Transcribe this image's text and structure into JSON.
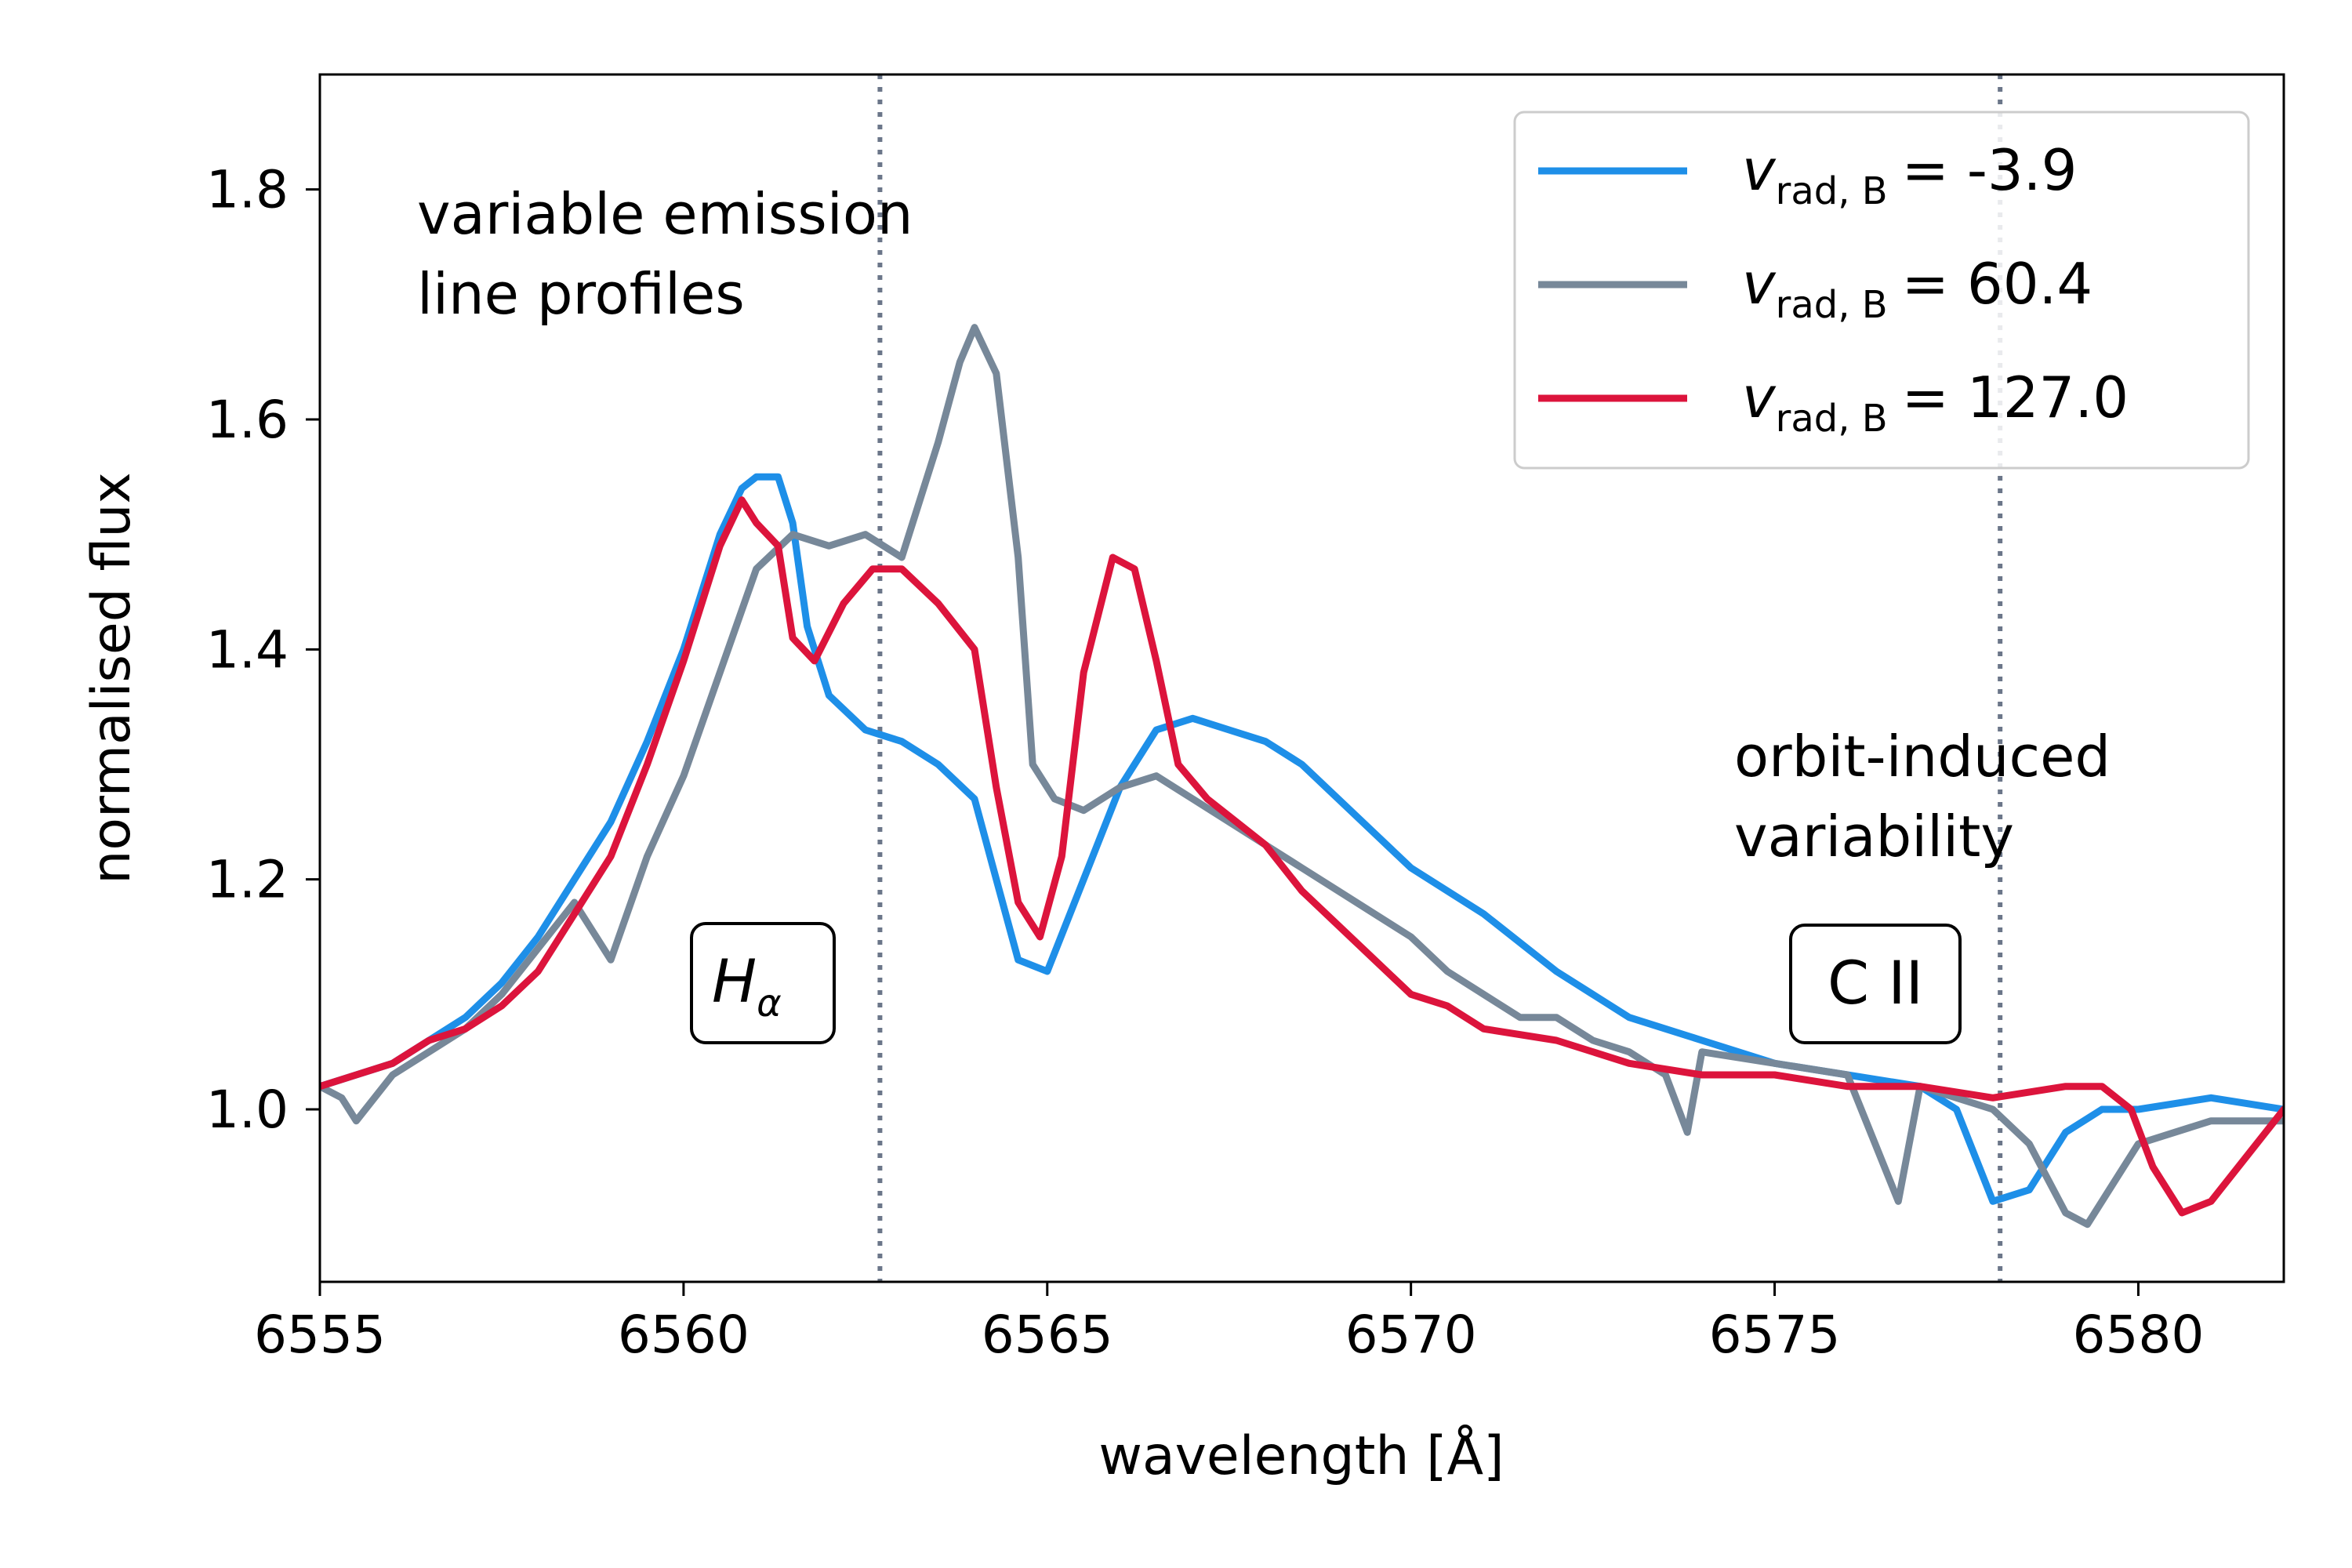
{
  "chart_data": {
    "type": "line",
    "xlabel": "wavelength [Å]",
    "ylabel": "normalised flux",
    "xlim": [
      6555,
      6582
    ],
    "ylim": [
      0.85,
      1.9
    ],
    "x_ticks": [
      "6555",
      "6560",
      "6565",
      "6570",
      "6575",
      "6580"
    ],
    "y_ticks": [
      "1.0",
      "1.2",
      "1.4",
      "1.6",
      "1.8"
    ],
    "grid": false,
    "legend_position": "top-right",
    "legend_var": "v",
    "legend_sub": "rad, B",
    "legend_eq": "=",
    "reference_lines": [
      {
        "x": 6562.7,
        "style": "dotted",
        "color": "#6b7689"
      },
      {
        "x": 6578.1,
        "style": "dotted",
        "color": "#6b7689"
      }
    ],
    "annotations": {
      "emission_line1": "variable emission",
      "emission_line2": "line profiles",
      "orbit_line1": "orbit-induced",
      "orbit_line2": "variability"
    },
    "line_labels": {
      "halpha_main": "H",
      "halpha_sub": "α",
      "cii": "C II"
    },
    "series": [
      {
        "name": "-3.9",
        "color": "#1e8fe8",
        "x": [
          6555.0,
          6555.5,
          6556.0,
          6556.5,
          6557.0,
          6557.5,
          6558.0,
          6558.5,
          6559.0,
          6559.5,
          6560.0,
          6560.5,
          6560.8,
          6561.0,
          6561.3,
          6561.5,
          6561.7,
          6562.0,
          6562.5,
          6563.0,
          6563.5,
          6564.0,
          6564.3,
          6564.6,
          6565.0,
          6565.5,
          6566.0,
          6566.5,
          6567.0,
          6567.5,
          6568.0,
          6568.5,
          6569.0,
          6569.5,
          6570.0,
          6571.0,
          6572.0,
          6573.0,
          6574.0,
          6575.0,
          6576.0,
          6577.0,
          6577.5,
          6578.0,
          6578.5,
          6579.0,
          6579.5,
          6580.0,
          6581.0,
          6582.0
        ],
        "y": [
          1.02,
          1.03,
          1.04,
          1.06,
          1.08,
          1.11,
          1.15,
          1.2,
          1.25,
          1.32,
          1.4,
          1.5,
          1.54,
          1.55,
          1.55,
          1.51,
          1.42,
          1.36,
          1.33,
          1.32,
          1.3,
          1.27,
          1.2,
          1.13,
          1.12,
          1.2,
          1.28,
          1.33,
          1.34,
          1.33,
          1.32,
          1.3,
          1.27,
          1.24,
          1.21,
          1.17,
          1.12,
          1.08,
          1.06,
          1.04,
          1.03,
          1.02,
          1.0,
          0.92,
          0.93,
          0.98,
          1.0,
          1.0,
          1.01,
          1.0
        ]
      },
      {
        "name": "60.4",
        "color": "#778899",
        "x": [
          6555.0,
          6555.3,
          6555.5,
          6556.0,
          6556.5,
          6557.0,
          6557.5,
          6558.0,
          6558.5,
          6559.0,
          6559.5,
          6560.0,
          6560.5,
          6561.0,
          6561.5,
          6562.0,
          6562.5,
          6563.0,
          6563.5,
          6563.8,
          6564.0,
          6564.3,
          6564.6,
          6564.8,
          6565.1,
          6565.5,
          6566.0,
          6566.5,
          6567.0,
          6567.5,
          6568.0,
          6568.5,
          6569.0,
          6569.5,
          6570.0,
          6570.5,
          6571.0,
          6571.5,
          6572.0,
          6572.5,
          6573.0,
          6573.5,
          6573.8,
          6574.0,
          6575.0,
          6576.0,
          6576.7,
          6577.0,
          6577.5,
          6578.0,
          6578.5,
          6579.0,
          6579.3,
          6579.6,
          6580.0,
          6580.5,
          6581.0,
          6582.0
        ],
        "y": [
          1.02,
          1.01,
          0.99,
          1.03,
          1.05,
          1.07,
          1.1,
          1.14,
          1.18,
          1.13,
          1.22,
          1.29,
          1.38,
          1.47,
          1.5,
          1.49,
          1.5,
          1.48,
          1.58,
          1.65,
          1.68,
          1.64,
          1.48,
          1.3,
          1.27,
          1.26,
          1.28,
          1.29,
          1.27,
          1.25,
          1.23,
          1.21,
          1.19,
          1.17,
          1.15,
          1.12,
          1.1,
          1.08,
          1.08,
          1.06,
          1.05,
          1.03,
          0.98,
          1.05,
          1.04,
          1.03,
          0.92,
          1.02,
          1.01,
          1.0,
          0.97,
          0.91,
          0.9,
          0.93,
          0.97,
          0.98,
          0.99,
          0.99
        ]
      },
      {
        "name": "127.0",
        "color": "#dc143c",
        "x": [
          6555.0,
          6555.5,
          6556.0,
          6556.5,
          6557.0,
          6557.5,
          6558.0,
          6558.5,
          6559.0,
          6559.5,
          6560.0,
          6560.5,
          6560.8,
          6561.0,
          6561.3,
          6561.5,
          6561.8,
          6562.2,
          6562.6,
          6563.0,
          6563.5,
          6564.0,
          6564.3,
          6564.6,
          6564.9,
          6565.2,
          6565.5,
          6565.9,
          6566.2,
          6566.5,
          6566.8,
          6567.2,
          6567.6,
          6568.0,
          6568.5,
          6569.0,
          6569.5,
          6570.0,
          6570.5,
          6571.0,
          6572.0,
          6573.0,
          6574.0,
          6575.0,
          6576.0,
          6577.0,
          6578.0,
          6579.0,
          6579.5,
          6579.9,
          6580.2,
          6580.6,
          6581.0,
          6581.5,
          6582.0
        ],
        "y": [
          1.02,
          1.03,
          1.04,
          1.06,
          1.07,
          1.09,
          1.12,
          1.17,
          1.22,
          1.3,
          1.39,
          1.49,
          1.53,
          1.51,
          1.49,
          1.41,
          1.39,
          1.44,
          1.47,
          1.47,
          1.44,
          1.4,
          1.28,
          1.18,
          1.15,
          1.22,
          1.38,
          1.48,
          1.47,
          1.39,
          1.3,
          1.27,
          1.25,
          1.23,
          1.19,
          1.16,
          1.13,
          1.1,
          1.09,
          1.07,
          1.06,
          1.04,
          1.03,
          1.03,
          1.02,
          1.02,
          1.01,
          1.02,
          1.02,
          1.0,
          0.95,
          0.91,
          0.92,
          0.96,
          1.0
        ]
      }
    ]
  }
}
